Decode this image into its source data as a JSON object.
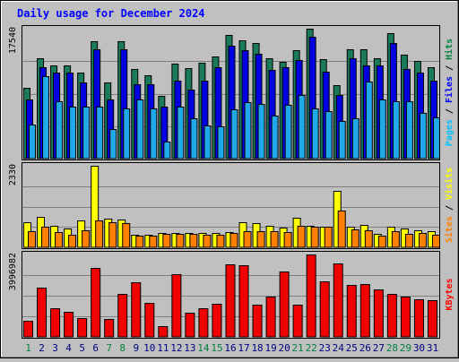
{
  "chart_data": {
    "type": "bar",
    "title": "Daily usage for December 2024",
    "categories": [
      "1",
      "2",
      "3",
      "4",
      "5",
      "6",
      "7",
      "8",
      "9",
      "10",
      "11",
      "12",
      "13",
      "14",
      "15",
      "16",
      "17",
      "18",
      "19",
      "20",
      "21",
      "22",
      "23",
      "24",
      "25",
      "26",
      "27",
      "28",
      "29",
      "30",
      "31"
    ],
    "weekend_categories": [
      "1",
      "7",
      "8",
      "14",
      "15",
      "21",
      "22",
      "28",
      "29"
    ],
    "panels": [
      {
        "id": "top",
        "ymax": 17540,
        "ymax_label": "17540",
        "axis_labels": [
          {
            "text": "Pages",
            "color": "#00c0ff"
          },
          {
            "text": " / ",
            "color": "#000000"
          },
          {
            "text": "Files",
            "color": "#0000ff"
          },
          {
            "text": " / ",
            "color": "#000000"
          },
          {
            "text": "Hits",
            "color": "#008040"
          }
        ],
        "series": [
          {
            "name": "Hits",
            "color": "#1a7a5a",
            "values": [
              9500,
              13600,
              12600,
              12600,
              11600,
              15900,
              10300,
              15900,
              12100,
              11300,
              8500,
              12800,
              12200,
              12900,
              13800,
              16700,
              16000,
              15600,
              13600,
              13100,
              14600,
              17540,
              13400,
              9900,
              14800,
              14800,
              13600,
              16900,
              14000,
              13200,
              12300
            ]
          },
          {
            "name": "Files",
            "color": "#0000e0",
            "values": [
              8000,
              12300,
              11600,
              11600,
              10300,
              14700,
              8000,
              14700,
              10100,
              10100,
              7000,
              10500,
              9300,
              10500,
              12300,
              15300,
              14600,
              14100,
              12000,
              12300,
              13300,
              16500,
              11700,
              8600,
              13600,
              12600,
              12600,
              15600,
              12100,
              11600,
              10500
            ]
          },
          {
            "name": "Pages",
            "color": "#20a8e8",
            "values": [
              4600,
              11100,
              7800,
              7000,
              7000,
              7000,
              4000,
              6800,
              8000,
              6800,
              2300,
              7000,
              5400,
              4500,
              4400,
              6600,
              7600,
              7400,
              5800,
              7300,
              8600,
              6800,
              6400,
              5100,
              5400,
              10400,
              8000,
              7800,
              7700,
              6200,
              5600
            ]
          }
        ]
      },
      {
        "id": "mid",
        "ymax": 2330,
        "ymax_label": "2330",
        "axis_labels": [
          {
            "text": "Sites",
            "color": "#ff8000"
          },
          {
            "text": " / ",
            "color": "#000000"
          },
          {
            "text": "Visits",
            "color": "#ffff00"
          }
        ],
        "series": [
          {
            "name": "Visits",
            "color": "#ffff00",
            "values": [
              720,
              860,
              610,
              540,
              780,
              2330,
              810,
              790,
              360,
              360,
              420,
              420,
              420,
              420,
              420,
              440,
              720,
              700,
              620,
              560,
              840,
              620,
              600,
              1620,
              600,
              650,
              380,
              590,
              530,
              480,
              460
            ]
          },
          {
            "name": "Sites",
            "color": "#ff8000",
            "values": [
              460,
              590,
              430,
              360,
              480,
              780,
              720,
              690,
              330,
              340,
              380,
              380,
              380,
              360,
              370,
              420,
              460,
              460,
              460,
              440,
              620,
              590,
              580,
              1050,
              520,
              480,
              340,
              450,
              390,
              400,
              370
            ]
          }
        ]
      },
      {
        "id": "bot",
        "ymax": 3996982,
        "ymax_label": "3996982",
        "axis_labels": [
          {
            "text": "KBytes",
            "color": "#ff0000"
          }
        ],
        "series": [
          {
            "name": "KBytes",
            "color": "#f00000",
            "values": [
              780000,
              2400000,
              1400000,
              1200000,
              920000,
              3350000,
              880000,
              2090000,
              2660000,
              1660000,
              510000,
              3040000,
              1170000,
              1370000,
              1620000,
              3530000,
              3490000,
              1550000,
              1940000,
              3150000,
              1560000,
              3990000,
              2700000,
              3580000,
              2540000,
              2580000,
              2320000,
              2070000,
              1940000,
              1820000,
              1790000
            ]
          }
        ]
      }
    ]
  }
}
